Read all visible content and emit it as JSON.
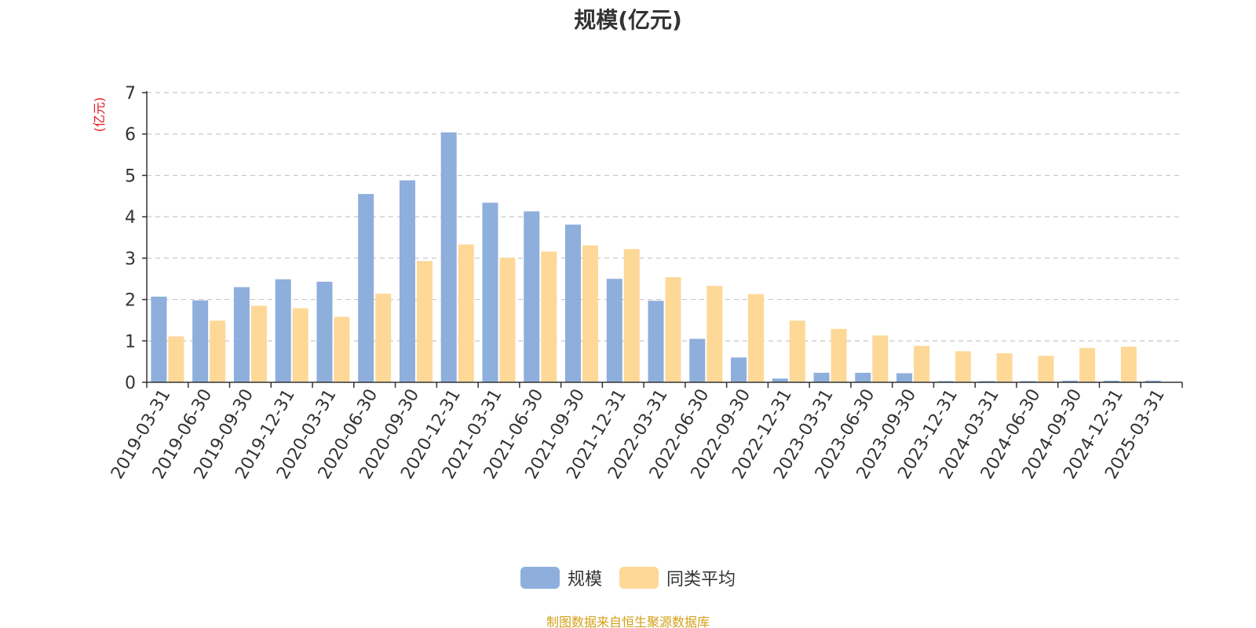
{
  "chart_data": {
    "type": "bar",
    "title": "规模(亿元)",
    "ylabel": "(亿元)",
    "xlabel": "",
    "ylim": [
      0,
      7
    ],
    "yticks": [
      "0",
      "1",
      "2",
      "3",
      "4",
      "5",
      "6",
      "7"
    ],
    "grid": true,
    "legend_position": "bottom-center",
    "categories": [
      "2019-03-31",
      "2019-06-30",
      "2019-09-30",
      "2019-12-31",
      "2020-03-31",
      "2020-06-30",
      "2020-09-30",
      "2020-12-31",
      "2021-03-31",
      "2021-06-30",
      "2021-09-30",
      "2021-12-31",
      "2022-03-31",
      "2022-06-30",
      "2022-09-30",
      "2022-12-31",
      "2023-03-31",
      "2023-06-30",
      "2023-09-30",
      "2023-12-31",
      "2024-03-31",
      "2024-06-30",
      "2024-09-30",
      "2024-12-31",
      "2025-03-31"
    ],
    "series": [
      {
        "name": "规模",
        "color": "#8eaedc",
        "values": [
          2.07,
          1.98,
          2.3,
          2.49,
          2.43,
          4.55,
          4.88,
          6.04,
          4.34,
          4.13,
          3.81,
          2.5,
          1.97,
          1.05,
          0.6,
          0.09,
          0.23,
          0.23,
          0.22,
          0.03,
          0.03,
          0.03,
          0.04,
          0.04,
          0.04
        ]
      },
      {
        "name": "同类平均",
        "color": "#fdd897",
        "values": [
          1.11,
          1.49,
          1.85,
          1.79,
          1.58,
          2.14,
          2.93,
          3.33,
          3.01,
          3.16,
          3.31,
          3.22,
          2.54,
          2.33,
          2.13,
          1.49,
          1.29,
          1.13,
          0.88,
          0.75,
          0.7,
          0.64,
          0.83,
          0.86,
          null
        ]
      }
    ]
  },
  "legend": {
    "items": [
      {
        "label": "规模",
        "color": "#8eaedc"
      },
      {
        "label": "同类平均",
        "color": "#fdd897"
      }
    ]
  },
  "source_note": "制图数据来自恒生聚源数据库"
}
